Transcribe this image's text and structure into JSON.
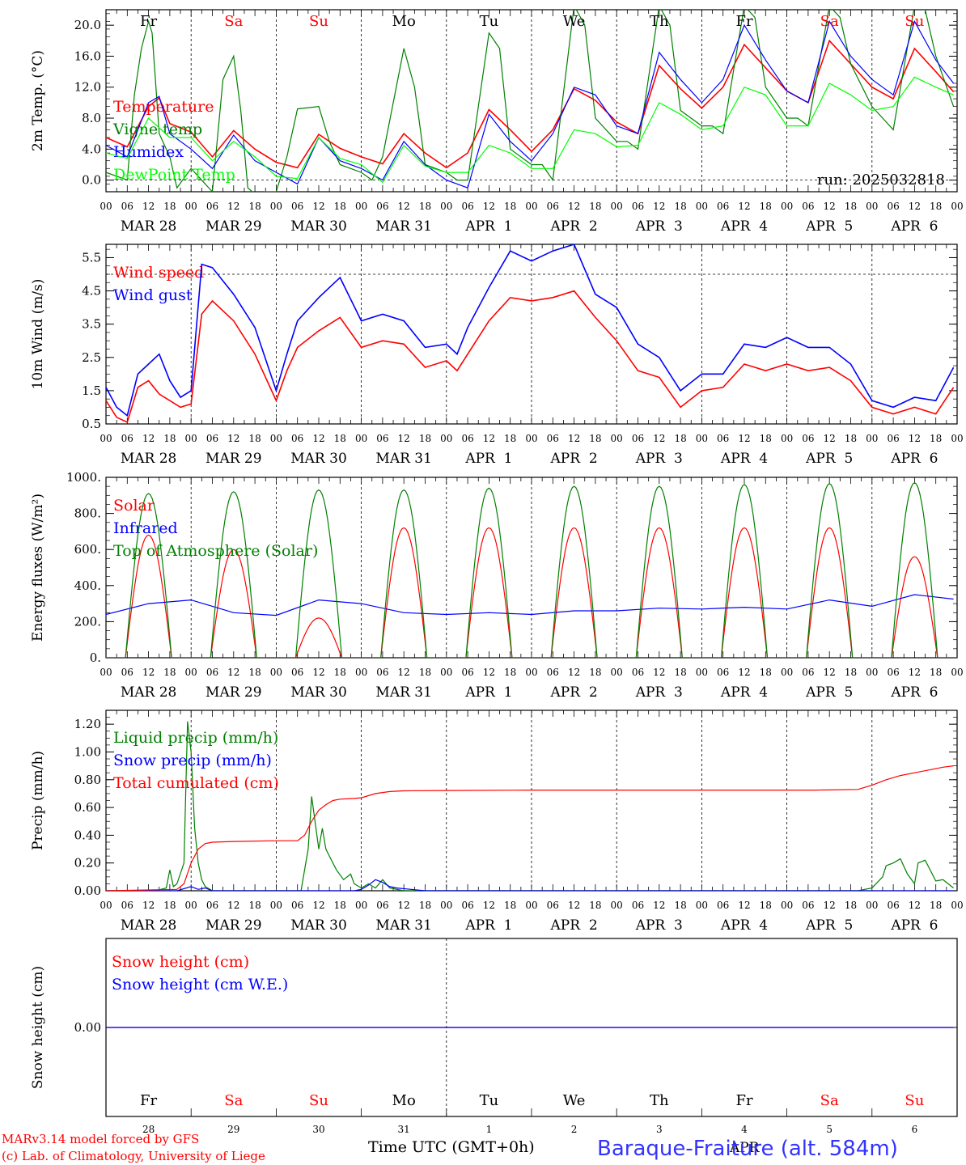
{
  "days": [
    {
      "dow": "Fr",
      "weekend": false,
      "date": "MAR 28",
      "num": "28"
    },
    {
      "dow": "Sa",
      "weekend": true,
      "date": "MAR 29",
      "num": "29"
    },
    {
      "dow": "Su",
      "weekend": true,
      "date": "MAR 30",
      "num": "30"
    },
    {
      "dow": "Mo",
      "weekend": false,
      "date": "MAR 31",
      "num": "31"
    },
    {
      "dow": "Tu",
      "weekend": false,
      "date": "APR  1",
      "num": "1"
    },
    {
      "dow": "We",
      "weekend": false,
      "date": "APR  2",
      "num": "2"
    },
    {
      "dow": "Th",
      "weekend": false,
      "date": "APR  3",
      "num": "3"
    },
    {
      "dow": "Fr",
      "weekend": false,
      "date": "APR  4",
      "num": "4"
    },
    {
      "dow": "Sa",
      "weekend": true,
      "date": "APR  5",
      "num": "5"
    },
    {
      "dow": "Su",
      "weekend": true,
      "date": "APR  6",
      "num": "6"
    }
  ],
  "hour_labels": [
    "00",
    "06",
    "12",
    "18"
  ],
  "colors": {
    "red": "#ff0000",
    "blue": "#0000ff",
    "dkgreen": "#008000",
    "ltgreen": "#00ff00",
    "weekend": "#ff0000",
    "text": "#000000"
  },
  "run_label": "run: 2025032818",
  "footer": {
    "line1": "MARv3.14 model forced by GFS",
    "line2": "(c) Lab. of Climatology, University of Liege",
    "xlabel": "Time UTC (GMT+0h)",
    "station": "Baraque-Fraiture (alt. 584m)",
    "overlay": "APR"
  },
  "chart_data": [
    {
      "type": "line",
      "ylabel": "2m Temp. (°C)",
      "ylim": [
        -1.5,
        22.0
      ],
      "yticks": [
        "0.0",
        "4.0",
        "8.0",
        "12.0",
        "16.0",
        "20.0"
      ],
      "ytick_values": [
        0,
        4,
        8,
        12,
        16,
        20
      ],
      "ref_line": 0,
      "x_unit": "hours since Mar 28 00 UTC",
      "series": [
        {
          "name": "Temperature",
          "color": "#ff0000",
          "x": [
            0,
            6,
            12,
            15,
            18,
            24,
            30,
            36,
            42,
            48,
            54,
            60,
            66,
            72,
            78,
            84,
            90,
            96,
            102,
            108,
            114,
            120,
            126,
            132,
            138,
            144,
            150,
            156,
            162,
            168,
            174,
            180,
            186,
            192,
            198,
            204,
            210,
            216,
            222,
            228,
            234,
            239
          ],
          "y": [
            5.5,
            4.3,
            9.5,
            10.6,
            7.3,
            6.2,
            3.0,
            6.4,
            4.0,
            2.3,
            1.6,
            5.9,
            4.1,
            3.0,
            2.1,
            6.0,
            3.5,
            1.6,
            3.5,
            9.1,
            6.5,
            3.7,
            6.5,
            11.8,
            10.3,
            7.5,
            6.0,
            14.8,
            11.8,
            9.3,
            12.0,
            17.5,
            14.5,
            11.5,
            10.0,
            18.0,
            15.0,
            12.0,
            10.5,
            17.0,
            14.0,
            11.4
          ]
        },
        {
          "name": "Vigne temp",
          "color": "#008000",
          "x": [
            0,
            6,
            8,
            10,
            12,
            13,
            15,
            18,
            20,
            24,
            30,
            33,
            36,
            38,
            40,
            42,
            45,
            48,
            51,
            54,
            60,
            63,
            66,
            72,
            75,
            78,
            84,
            87,
            90,
            96,
            99,
            102,
            108,
            111,
            114,
            120,
            123,
            126,
            132,
            135,
            138,
            144,
            147,
            150,
            156,
            159,
            162,
            168,
            171,
            174,
            180,
            183,
            186,
            192,
            195,
            198,
            204,
            207,
            210,
            216,
            219,
            222,
            228,
            231,
            234,
            239
          ],
          "y": [
            1.0,
            0.0,
            11.0,
            17.0,
            20.5,
            19.0,
            6.0,
            3.0,
            -1.0,
            1.5,
            -1.5,
            13.0,
            16.0,
            9.0,
            -1.0,
            -1.8,
            -1.5,
            -1.5,
            3.0,
            9.2,
            9.5,
            5.0,
            2.0,
            1.0,
            0.0,
            3.0,
            17.0,
            12.0,
            2.0,
            1.0,
            0.0,
            0.0,
            19.0,
            17.0,
            4.0,
            2.0,
            2.0,
            0.0,
            22.5,
            20.0,
            8.0,
            5.0,
            5.0,
            4.0,
            22.5,
            20.0,
            9.0,
            7.0,
            7.0,
            6.0,
            22.5,
            21.0,
            12.0,
            8.0,
            8.0,
            7.0,
            22.5,
            21.0,
            15.0,
            9.5,
            8.0,
            6.5,
            22.5,
            22.0,
            16.0,
            9.5
          ]
        },
        {
          "name": "Humidex",
          "color": "#0000ff",
          "x": [
            0,
            6,
            12,
            15,
            18,
            24,
            30,
            36,
            42,
            48,
            54,
            60,
            66,
            72,
            78,
            84,
            90,
            96,
            102,
            108,
            114,
            120,
            126,
            132,
            138,
            144,
            150,
            156,
            162,
            168,
            174,
            180,
            186,
            192,
            198,
            204,
            210,
            216,
            222,
            228,
            234,
            239
          ],
          "y": [
            4.5,
            3.0,
            10.0,
            10.8,
            6.0,
            4.0,
            1.5,
            5.8,
            2.5,
            1.0,
            -0.5,
            5.5,
            2.5,
            1.5,
            0.0,
            5.0,
            2.0,
            0.0,
            -1.0,
            8.5,
            5.0,
            2.5,
            6.0,
            12.0,
            11.0,
            7.0,
            6.0,
            16.5,
            13.0,
            10.0,
            13.0,
            20.0,
            15.5,
            11.5,
            10.0,
            20.5,
            16.0,
            13.0,
            11.0,
            20.5,
            15.5,
            12.5
          ]
        },
        {
          "name": "DewPoint Temp",
          "color": "#00ff00",
          "x": [
            0,
            6,
            12,
            18,
            24,
            30,
            36,
            42,
            48,
            54,
            60,
            66,
            72,
            78,
            84,
            90,
            96,
            102,
            108,
            114,
            120,
            126,
            132,
            138,
            144,
            150,
            156,
            162,
            168,
            174,
            180,
            186,
            192,
            198,
            204,
            210,
            216,
            222,
            228,
            234,
            239
          ],
          "y": [
            3.5,
            2.8,
            8.0,
            5.5,
            5.5,
            2.5,
            5.0,
            3.0,
            0.5,
            0.2,
            5.5,
            2.8,
            2.0,
            -0.3,
            4.5,
            1.8,
            1.0,
            1.0,
            4.5,
            3.5,
            1.5,
            1.5,
            6.5,
            6.0,
            4.3,
            4.5,
            10.0,
            8.5,
            6.5,
            7.0,
            12.0,
            11.0,
            7.0,
            7.0,
            12.5,
            11.0,
            9.0,
            9.5,
            13.3,
            12.0,
            11.0
          ]
        }
      ]
    },
    {
      "type": "line",
      "ylabel": "10m Wind (m/s)",
      "ylim": [
        0.5,
        5.9
      ],
      "yticks": [
        "0.5",
        "1.5",
        "2.5",
        "3.5",
        "4.5",
        "5.5"
      ],
      "ytick_values": [
        0.5,
        1.5,
        2.5,
        3.5,
        4.5,
        5.5
      ],
      "ref_line": 5.0,
      "x_unit": "hours since Mar 28 00 UTC",
      "series": [
        {
          "name": "Wind speed",
          "color": "#ff0000",
          "x": [
            0,
            3,
            6,
            9,
            12,
            15,
            18,
            21,
            24,
            27,
            30,
            36,
            42,
            48,
            51,
            54,
            60,
            66,
            72,
            78,
            84,
            90,
            96,
            99,
            102,
            108,
            114,
            120,
            126,
            132,
            138,
            144,
            150,
            156,
            162,
            168,
            174,
            180,
            186,
            192,
            198,
            204,
            210,
            216,
            222,
            228,
            234,
            239
          ],
          "y": [
            1.2,
            0.7,
            0.55,
            1.6,
            1.8,
            1.4,
            1.2,
            1.0,
            1.1,
            3.8,
            4.2,
            3.6,
            2.6,
            1.2,
            2.1,
            2.8,
            3.3,
            3.7,
            2.8,
            3.0,
            2.9,
            2.2,
            2.4,
            2.1,
            2.6,
            3.6,
            4.3,
            4.2,
            4.3,
            4.5,
            3.7,
            3.0,
            2.1,
            1.9,
            1.0,
            1.5,
            1.6,
            2.3,
            2.1,
            2.3,
            2.1,
            2.2,
            1.8,
            1.0,
            0.8,
            1.0,
            0.8,
            1.6
          ]
        },
        {
          "name": "Wind gust",
          "color": "#0000ff",
          "x": [
            0,
            3,
            6,
            9,
            12,
            15,
            18,
            21,
            24,
            27,
            30,
            36,
            42,
            48,
            51,
            54,
            60,
            66,
            72,
            78,
            84,
            90,
            96,
            99,
            102,
            108,
            114,
            120,
            126,
            132,
            138,
            144,
            150,
            156,
            162,
            168,
            174,
            180,
            186,
            192,
            198,
            204,
            210,
            216,
            222,
            228,
            234,
            239
          ],
          "y": [
            1.6,
            1.0,
            0.75,
            2.0,
            2.3,
            2.6,
            1.8,
            1.3,
            1.5,
            5.3,
            5.2,
            4.4,
            3.4,
            1.5,
            2.6,
            3.6,
            4.3,
            4.9,
            3.6,
            3.8,
            3.6,
            2.8,
            2.9,
            2.6,
            3.4,
            4.6,
            5.7,
            5.4,
            5.7,
            5.9,
            4.4,
            4.0,
            2.9,
            2.5,
            1.5,
            2.0,
            2.0,
            2.9,
            2.8,
            3.1,
            2.8,
            2.8,
            2.3,
            1.2,
            1.0,
            1.3,
            1.2,
            2.2
          ]
        }
      ]
    },
    {
      "type": "line",
      "ylabel": "Energy fluxes (W/m²)",
      "ylim": [
        0,
        1000
      ],
      "yticks": [
        "0.",
        "200.",
        "400.",
        "600.",
        "800.",
        "1000."
      ],
      "ytick_values": [
        0,
        200,
        400,
        600,
        800,
        1000
      ],
      "x_unit": "hours since Mar 28 00 UTC",
      "sunrise_hour": 5.5,
      "sunset_hour": 18.5,
      "series": [
        {
          "name": "Solar",
          "color": "#ff0000",
          "daily_peak": [
            680,
            600,
            220,
            720,
            720,
            720,
            720,
            720,
            720,
            560
          ]
        },
        {
          "name": "Infrared",
          "color": "#0000ff",
          "x": [
            0,
            12,
            24,
            36,
            48,
            60,
            72,
            84,
            96,
            108,
            120,
            132,
            144,
            156,
            168,
            180,
            192,
            204,
            216,
            228,
            239
          ],
          "y": [
            240,
            300,
            320,
            250,
            235,
            320,
            300,
            250,
            240,
            250,
            240,
            260,
            260,
            275,
            270,
            280,
            270,
            320,
            285,
            350,
            325
          ]
        },
        {
          "name": "Top of Atmosphere (Solar)",
          "color": "#008000",
          "daily_peak": [
            910,
            920,
            930,
            930,
            940,
            950,
            950,
            960,
            965,
            970
          ]
        }
      ]
    },
    {
      "type": "line",
      "ylabel": "Precip (mm/h)",
      "ylim": [
        0,
        1.3
      ],
      "yticks": [
        "0.00",
        "0.20",
        "0.40",
        "0.60",
        "0.80",
        "1.00",
        "1.20"
      ],
      "ytick_values": [
        0,
        0.2,
        0.4,
        0.6,
        0.8,
        1.0,
        1.2
      ],
      "x_unit": "hours since Mar 28 00 UTC",
      "series": [
        {
          "name": "Liquid precip (mm/h)",
          "color": "#008000",
          "x": [
            0,
            14,
            17,
            18,
            19,
            20,
            22,
            23,
            24,
            25,
            26,
            27,
            28,
            30,
            48,
            55,
            57,
            58,
            60,
            61,
            62,
            63,
            65,
            67,
            69,
            70,
            72,
            74,
            76,
            78,
            80,
            84,
            212,
            216,
            219,
            220,
            222,
            224,
            226,
            228,
            229,
            231,
            233,
            234,
            236,
            239
          ],
          "y": [
            0,
            0,
            0.02,
            0.15,
            0.03,
            0.05,
            0.2,
            1.22,
            1.0,
            0.45,
            0.2,
            0.08,
            0.03,
            0,
            0,
            0,
            0.3,
            0.68,
            0.3,
            0.45,
            0.3,
            0.25,
            0.15,
            0.08,
            0.12,
            0.05,
            0.02,
            0.05,
            0.02,
            0.08,
            0.02,
            0,
            0,
            0.02,
            0.1,
            0.18,
            0.2,
            0.23,
            0.12,
            0.05,
            0.2,
            0.22,
            0.12,
            0.07,
            0.08,
            0.02
          ]
        },
        {
          "name": "Snow precip (mm/h)",
          "color": "#0000ff",
          "x": [
            0,
            20,
            24,
            26,
            28,
            30,
            70,
            72,
            74,
            76,
            78,
            80,
            82,
            86,
            90,
            239
          ],
          "y": [
            0,
            0,
            0.03,
            0.01,
            0.02,
            0,
            0,
            0.01,
            0.04,
            0.08,
            0.06,
            0.03,
            0.02,
            0.01,
            0,
            0
          ]
        },
        {
          "name": "Total cumulated (cm)",
          "color": "#ff0000",
          "x": [
            0,
            20,
            22,
            24,
            26,
            28,
            30,
            36,
            48,
            54,
            56,
            58,
            60,
            62,
            64,
            66,
            70,
            72,
            76,
            80,
            84,
            96,
            120,
            168,
            200,
            212,
            216,
            220,
            224,
            228,
            232,
            236,
            239
          ],
          "y": [
            0,
            0.01,
            0.05,
            0.2,
            0.3,
            0.34,
            0.35,
            0.355,
            0.36,
            0.36,
            0.4,
            0.5,
            0.58,
            0.62,
            0.65,
            0.66,
            0.665,
            0.67,
            0.7,
            0.715,
            0.72,
            0.722,
            0.725,
            0.725,
            0.725,
            0.73,
            0.76,
            0.8,
            0.83,
            0.85,
            0.87,
            0.89,
            0.9
          ]
        }
      ]
    },
    {
      "type": "line",
      "ylabel": "Snow height (cm)",
      "ylim": [
        -1,
        1
      ],
      "yticks": [
        "0.00"
      ],
      "ytick_values": [
        0
      ],
      "x_unit": "hours since Mar 28 00 UTC",
      "series": [
        {
          "name": "Snow height (cm)",
          "color": "#ff0000",
          "x": [
            0,
            239
          ],
          "y": [
            0,
            0
          ]
        },
        {
          "name": "Snow height (cm W.E.)",
          "color": "#0000ff",
          "x": [
            0,
            239
          ],
          "y": [
            0,
            0
          ]
        }
      ]
    }
  ]
}
